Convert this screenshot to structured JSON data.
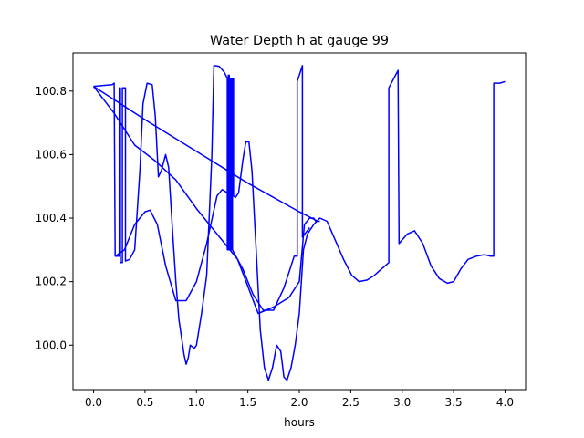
{
  "chart_data": {
    "type": "line",
    "title": "Water Depth h at gauge 99",
    "xlabel": "hours",
    "ylabel": "",
    "xlim": [
      -0.2,
      4.2
    ],
    "ylim": [
      99.86,
      100.92
    ],
    "grid": false,
    "xticks": [
      0.0,
      0.5,
      1.0,
      1.5,
      2.0,
      2.5,
      3.0,
      3.5,
      4.0
    ],
    "xtick_labels": [
      "0.0",
      "0.5",
      "1.0",
      "1.5",
      "2.0",
      "2.5",
      "3.0",
      "3.5",
      "4.0"
    ],
    "yticks": [
      100.0,
      100.2,
      100.4,
      100.6,
      100.8
    ],
    "ytick_labels": [
      "100.0",
      "100.2",
      "100.4",
      "100.6",
      "100.8"
    ],
    "series": [
      {
        "color": "#0000ff",
        "points": [
          [
            0.0,
            100.815
          ],
          [
            0.18,
            100.82
          ],
          [
            0.2,
            100.825
          ],
          [
            0.21,
            100.28
          ],
          [
            0.25,
            100.28
          ],
          [
            0.25,
            100.81
          ],
          [
            0.26,
            100.81
          ],
          [
            0.26,
            100.26
          ],
          [
            0.28,
            100.26
          ],
          [
            0.28,
            100.81
          ],
          [
            0.31,
            100.81
          ],
          [
            0.31,
            100.265
          ],
          [
            0.35,
            100.27
          ],
          [
            0.4,
            100.3
          ],
          [
            0.45,
            100.55
          ],
          [
            0.48,
            100.76
          ],
          [
            0.52,
            100.825
          ],
          [
            0.57,
            100.82
          ],
          [
            0.6,
            100.72
          ],
          [
            0.63,
            100.53
          ],
          [
            0.66,
            100.55
          ],
          [
            0.7,
            100.6
          ],
          [
            0.73,
            100.56
          ],
          [
            0.77,
            100.35
          ],
          [
            0.8,
            100.2
          ],
          [
            0.83,
            100.08
          ],
          [
            0.88,
            99.97
          ],
          [
            0.9,
            99.94
          ],
          [
            0.92,
            99.96
          ],
          [
            0.94,
            100.0
          ],
          [
            0.98,
            99.99
          ],
          [
            1.0,
            100.0
          ],
          [
            1.05,
            100.1
          ],
          [
            1.1,
            100.22
          ],
          [
            1.15,
            100.6
          ],
          [
            1.17,
            100.88
          ],
          [
            1.22,
            100.878
          ],
          [
            1.27,
            100.86
          ],
          [
            1.3,
            100.84
          ],
          [
            1.3,
            100.3
          ],
          [
            1.31,
            100.3
          ],
          [
            1.31,
            100.85
          ],
          [
            1.32,
            100.85
          ],
          [
            1.32,
            100.3
          ],
          [
            1.33,
            100.3
          ],
          [
            1.33,
            100.84
          ],
          [
            1.34,
            100.84
          ],
          [
            1.34,
            100.3
          ],
          [
            1.35,
            100.3
          ],
          [
            1.35,
            100.84
          ],
          [
            1.36,
            100.84
          ],
          [
            1.36,
            100.47
          ],
          [
            1.38,
            100.465
          ],
          [
            1.41,
            100.48
          ],
          [
            1.45,
            100.58
          ],
          [
            1.48,
            100.64
          ],
          [
            1.51,
            100.64
          ],
          [
            1.54,
            100.55
          ],
          [
            1.58,
            100.3
          ],
          [
            1.62,
            100.05
          ],
          [
            1.66,
            99.93
          ],
          [
            1.7,
            99.89
          ],
          [
            1.74,
            99.93
          ],
          [
            1.78,
            100.0
          ],
          [
            1.82,
            99.98
          ],
          [
            1.85,
            99.9
          ],
          [
            1.88,
            99.89
          ],
          [
            1.92,
            99.93
          ],
          [
            1.96,
            100.0
          ],
          [
            2.0,
            100.1
          ],
          [
            2.04,
            100.3
          ],
          [
            2.08,
            100.35
          ],
          [
            2.14,
            100.38
          ],
          [
            2.2,
            100.4
          ],
          [
            2.27,
            100.39
          ],
          [
            2.35,
            100.33
          ],
          [
            2.43,
            100.27
          ],
          [
            2.51,
            100.22
          ],
          [
            2.58,
            100.2
          ],
          [
            2.66,
            100.205
          ],
          [
            2.73,
            100.22
          ],
          [
            2.8,
            100.24
          ],
          [
            2.87,
            100.26
          ],
          [
            2.87,
            100.81
          ],
          [
            2.96,
            100.865
          ],
          [
            2.97,
            100.32
          ],
          [
            3.05,
            100.35
          ],
          [
            3.12,
            100.36
          ],
          [
            3.2,
            100.32
          ],
          [
            3.28,
            100.25
          ],
          [
            3.36,
            100.21
          ],
          [
            3.44,
            100.195
          ],
          [
            3.5,
            100.2
          ],
          [
            3.57,
            100.24
          ],
          [
            3.64,
            100.27
          ],
          [
            3.72,
            100.28
          ],
          [
            3.8,
            100.285
          ],
          [
            3.86,
            100.28
          ],
          [
            3.89,
            100.28
          ],
          [
            3.89,
            100.825
          ],
          [
            3.95,
            100.825
          ],
          [
            4.0,
            100.83
          ]
        ]
      },
      {
        "color": "#0000ff",
        "points": [
          [
            0.0,
            100.815
          ],
          [
            0.2,
            100.73
          ],
          [
            0.4,
            100.63
          ],
          [
            0.6,
            100.58
          ],
          [
            0.8,
            100.52
          ],
          [
            1.0,
            100.43
          ],
          [
            1.2,
            100.35
          ],
          [
            1.4,
            100.27
          ],
          [
            1.6,
            100.1
          ],
          [
            1.75,
            100.12
          ],
          [
            1.9,
            100.15
          ],
          [
            2.0,
            100.2
          ],
          [
            2.05,
            100.38
          ],
          [
            2.1,
            100.4
          ],
          [
            2.14,
            100.4
          ],
          [
            2.16,
            100.39
          ],
          [
            2.18,
            100.39
          ],
          [
            2.2,
            100.39
          ]
        ]
      },
      {
        "color": "#0000ff",
        "points": [
          [
            0.0,
            100.815
          ],
          [
            0.5,
            100.71
          ],
          [
            1.0,
            100.61
          ],
          [
            1.5,
            100.51
          ],
          [
            2.0,
            100.42
          ],
          [
            2.18,
            100.39
          ]
        ]
      },
      {
        "color": "#0000ff",
        "points": [
          [
            0.21,
            100.28
          ],
          [
            0.3,
            100.3
          ],
          [
            0.4,
            100.38
          ],
          [
            0.5,
            100.42
          ],
          [
            0.55,
            100.425
          ],
          [
            0.62,
            100.38
          ],
          [
            0.7,
            100.25
          ],
          [
            0.8,
            100.14
          ],
          [
            0.9,
            100.14
          ],
          [
            1.0,
            100.2
          ],
          [
            1.1,
            100.32
          ],
          [
            1.2,
            100.47
          ],
          [
            1.25,
            100.49
          ],
          [
            1.3,
            100.48
          ],
          [
            1.35,
            100.3
          ],
          [
            1.45,
            100.24
          ],
          [
            1.55,
            100.16
          ],
          [
            1.65,
            100.11
          ],
          [
            1.75,
            100.11
          ],
          [
            1.85,
            100.18
          ],
          [
            1.95,
            100.28
          ],
          [
            1.98,
            100.28
          ],
          [
            1.98,
            100.83
          ],
          [
            2.03,
            100.88
          ],
          [
            2.03,
            100.34
          ],
          [
            2.1,
            100.37
          ]
        ]
      }
    ]
  }
}
